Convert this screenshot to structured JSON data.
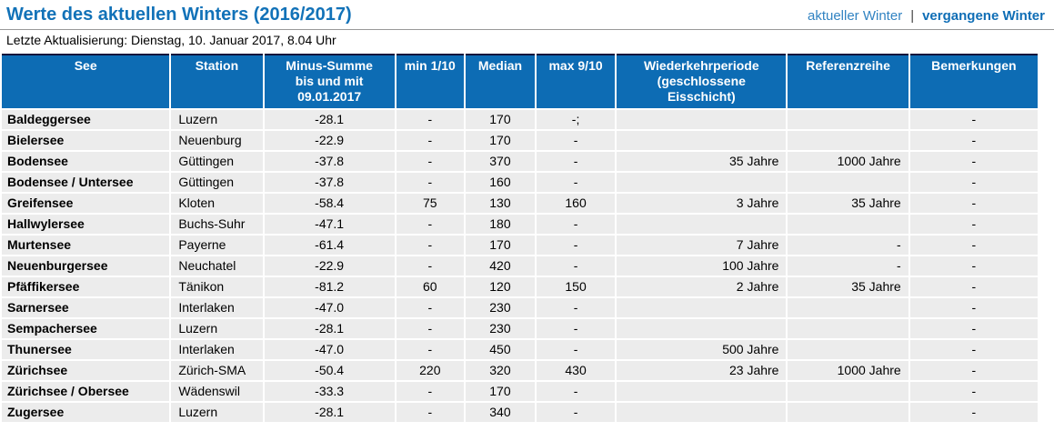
{
  "page": {
    "title": "Werte des aktuellen Winters (2016/2017)",
    "last_update": "Letzte Aktualisierung: Dienstag, 10. Januar 2017, 8.04 Uhr"
  },
  "nav": {
    "current_winter_label": "aktueller Winter",
    "separator": "|",
    "past_winter_label": "vergangene Winter"
  },
  "colors": {
    "title_blue": "#1272b8",
    "header_blue": "#0d6cb4",
    "header_top_border": "#14143c",
    "row_gray": "#ececec",
    "link_blue_regular": "#3183c2",
    "link_blue_bold": "#0f6eb6"
  },
  "table": {
    "keys": [
      "see",
      "station",
      "minus_summe",
      "min_1_10",
      "median",
      "max_9_10",
      "wiederkehrperiode",
      "referenzreihe",
      "bemerkungen"
    ],
    "headers": [
      "See",
      "Station",
      "Minus-Summe\nbis und mit\n09.01.2017",
      "min 1/10",
      "Median",
      "max 9/10",
      "Wiederkehrperiode\n(geschlossene\nEisschicht)",
      "Referenzreihe",
      "Bemerkungen"
    ],
    "rows": [
      [
        "Baldeggersee",
        "Luzern",
        "-28.1",
        "-",
        "170",
        "-;",
        "",
        "",
        "-"
      ],
      [
        "Bielersee",
        "Neuenburg",
        "-22.9",
        "-",
        "170",
        "-",
        "",
        "",
        "-"
      ],
      [
        "Bodensee",
        "Güttingen",
        "-37.8",
        "-",
        "370",
        "-",
        "35 Jahre",
        "1000 Jahre",
        "-"
      ],
      [
        "Bodensee / Untersee",
        "Güttingen",
        "-37.8",
        "-",
        "160",
        "-",
        "",
        "",
        "-"
      ],
      [
        "Greifensee",
        "Kloten",
        "-58.4",
        "75",
        "130",
        "160",
        "3 Jahre",
        "35 Jahre",
        "-"
      ],
      [
        "Hallwylersee",
        "Buchs-Suhr",
        "-47.1",
        "-",
        "180",
        "-",
        "",
        "",
        "-"
      ],
      [
        "Murtensee",
        "Payerne",
        "-61.4",
        "-",
        "170",
        "-",
        "7 Jahre",
        "-",
        "-"
      ],
      [
        "Neuenburgersee",
        "Neuchatel",
        "-22.9",
        "-",
        "420",
        "-",
        "100 Jahre",
        "-",
        "-"
      ],
      [
        "Pfäffikersee",
        "Tänikon",
        "-81.2",
        "60",
        "120",
        "150",
        "2 Jahre",
        "35 Jahre",
        "-"
      ],
      [
        "Sarnersee",
        "Interlaken",
        "-47.0",
        "-",
        "230",
        "-",
        "",
        "",
        "-"
      ],
      [
        "Sempachersee",
        "Luzern",
        "-28.1",
        "-",
        "230",
        "-",
        "",
        "",
        "-"
      ],
      [
        "Thunersee",
        "Interlaken",
        "-47.0",
        "-",
        "450",
        "-",
        "500 Jahre",
        "",
        "-"
      ],
      [
        "Zürichsee",
        "Zürich-SMA",
        "-50.4",
        "220",
        "320",
        "430",
        "23 Jahre",
        "1000 Jahre",
        "-"
      ],
      [
        "Zürichsee / Obersee",
        "Wädenswil",
        "-33.3",
        "-",
        "170",
        "-",
        "",
        "",
        "-"
      ],
      [
        "Zugersee",
        "Luzern",
        "-28.1",
        "-",
        "340",
        "-",
        "",
        "",
        "-"
      ]
    ]
  }
}
